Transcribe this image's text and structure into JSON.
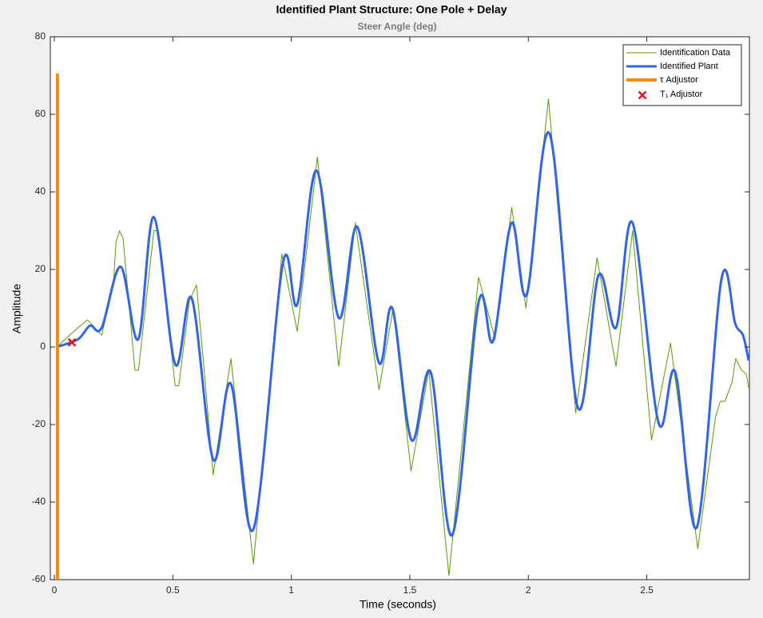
{
  "chart_data": {
    "type": "line",
    "title": "Identified Plant Structure: One Pole + Delay",
    "subtitle": "Steer Angle (deg)",
    "xlabel": "Time (seconds)",
    "ylabel": "Amplitude",
    "xlim": [
      -0.017,
      2.933
    ],
    "ylim": [
      -60,
      80
    ],
    "xticks": [
      0,
      0.5,
      1,
      1.5,
      2,
      2.5
    ],
    "yticks": [
      -60,
      -40,
      -20,
      0,
      20,
      40,
      60,
      80
    ],
    "grid": false,
    "legend": "upper right",
    "series": [
      {
        "name": "Identification Data",
        "color": "#5a9a08",
        "linewidth": 1,
        "smooth": false,
        "x": [
          0.01,
          0.1,
          0.14,
          0.2,
          0.25,
          0.26,
          0.275,
          0.29,
          0.34,
          0.355,
          0.42,
          0.435,
          0.51,
          0.525,
          0.57,
          0.6,
          0.635,
          0.67,
          0.745,
          0.84,
          0.96,
          1.025,
          1.11,
          1.2,
          1.27,
          1.37,
          1.43,
          1.505,
          1.58,
          1.665,
          1.79,
          1.86,
          1.93,
          1.99,
          2.085,
          2.2,
          2.29,
          2.37,
          2.44,
          2.52,
          2.6,
          2.715,
          2.79,
          2.81,
          2.83,
          2.86,
          2.875,
          2.9,
          2.92,
          2.93
        ],
        "values": [
          0,
          5,
          7,
          3,
          17,
          27,
          30,
          28,
          -6,
          -6,
          30,
          30,
          -10,
          -10,
          12,
          16,
          -8,
          -33,
          -3,
          -56,
          24,
          4,
          49,
          -5,
          32,
          -11,
          10,
          -32,
          -6,
          -59,
          18,
          2,
          36,
          10,
          64,
          -17,
          23,
          -5,
          30,
          -24,
          1,
          -52,
          -18,
          -14,
          -14,
          -9,
          -3,
          -6,
          -7,
          -10.5
        ]
      },
      {
        "name": "Identified Plant",
        "color": "#3264e6",
        "linewidth": 3,
        "smooth": true,
        "x": [
          0.01,
          0.1,
          0.15,
          0.2,
          0.28,
          0.354,
          0.42,
          0.51,
          0.58,
          0.67,
          0.745,
          0.84,
          0.964,
          1.025,
          1.106,
          1.2,
          1.278,
          1.369,
          1.426,
          1.507,
          1.588,
          1.679,
          1.79,
          1.851,
          1.929,
          1.993,
          2.09,
          2.208,
          2.296,
          2.37,
          2.44,
          2.549,
          2.62,
          2.711,
          2.815,
          2.873,
          2.906,
          2.93
        ],
        "values": [
          0,
          2,
          5.5,
          5,
          20.7,
          2,
          33.5,
          -4.5,
          12.5,
          -29,
          -9.5,
          -47,
          21.5,
          11,
          45.5,
          7.5,
          31,
          -4,
          10,
          -24,
          -6.5,
          -48.5,
          11.5,
          1.5,
          32,
          13.5,
          55,
          -15.5,
          18.5,
          5,
          32,
          -19.5,
          -6.5,
          -46.5,
          17.5,
          6,
          3,
          -3.5
        ]
      },
      {
        "name": "τ Adjustor",
        "color": "#f28b13",
        "linewidth": 4,
        "smooth": false,
        "x": [
          0.013,
          0.013
        ],
        "values": [
          -60,
          70.5
        ]
      },
      {
        "name": "T₁ Adjustor",
        "color": "#e8141e",
        "marker": "x",
        "x": [
          0.074
        ],
        "values": [
          1.2
        ]
      }
    ]
  }
}
